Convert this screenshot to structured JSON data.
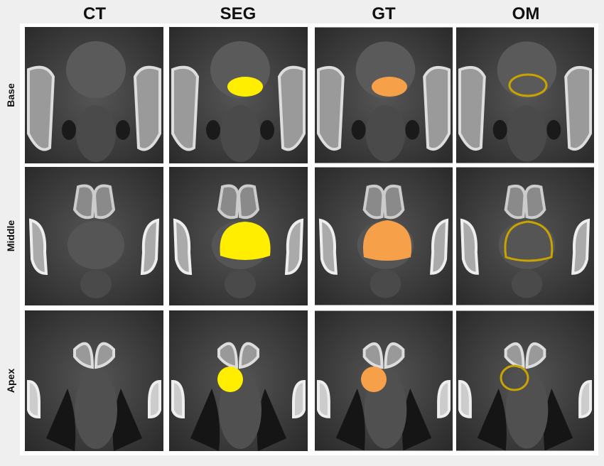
{
  "columns": [
    "CT",
    "SEG",
    "GT",
    "OM"
  ],
  "rows": [
    "Base",
    "Middle",
    "Apex"
  ]
}
